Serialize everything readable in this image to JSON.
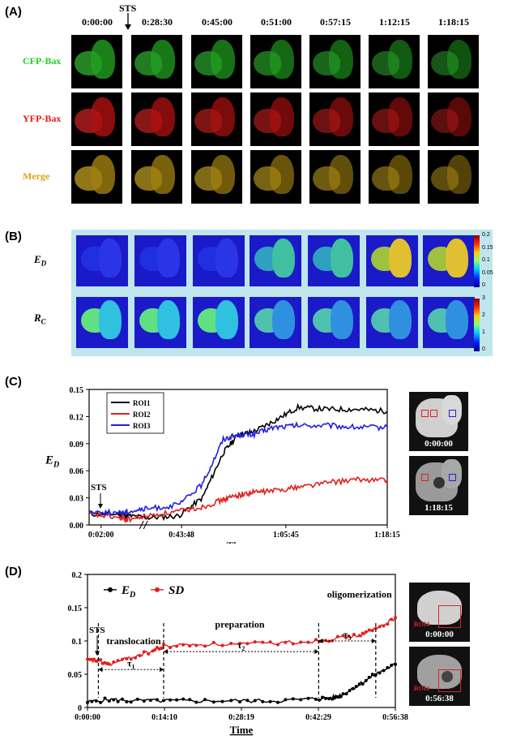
{
  "panelA": {
    "label": "(A)",
    "sts": "STS",
    "timepoints": [
      "0:00:00",
      "0:28:30",
      "0:45:00",
      "0:51:00",
      "0:57:15",
      "1:12:15",
      "1:18:15"
    ],
    "rows": [
      {
        "label": "CFP-Bax",
        "color": "#1fd21f"
      },
      {
        "label": "YFP-Bax",
        "color": "#e11a1a"
      },
      {
        "label": "Merge",
        "color": "#e0a21a"
      }
    ]
  },
  "panelB": {
    "label": "(B)",
    "row1": {
      "label": "E",
      "sub": "D"
    },
    "row2": {
      "label": "R",
      "sub": "C"
    },
    "cbar1": [
      "0.2",
      "0.15",
      "0.1",
      "0.05",
      "0"
    ],
    "cbar2": [
      "3",
      "2",
      "1",
      "0"
    ]
  },
  "panelC": {
    "label": "(C)",
    "ylabel_main": "E",
    "ylabel_sub": "D",
    "xlabel": "Time",
    "sts": "STS",
    "yticks": [
      "0.00",
      "0.03",
      "0.06",
      "0.09",
      "0.12",
      "0.15"
    ],
    "xticks": [
      "0:02:00",
      "0:43:48",
      "1:05:45",
      "1:18:15"
    ],
    "legend": [
      "ROI1",
      "ROI2",
      "ROI3"
    ],
    "inset_times": [
      "0:00:00",
      "1:18:15"
    ]
  },
  "panelD": {
    "label": "(D)",
    "xlabel": "Time",
    "sts": "STS",
    "yticks": [
      "0",
      "0.05",
      "0.1",
      "0.15",
      "0.2"
    ],
    "xticks": [
      "0:00:00",
      "0:14:10",
      "0:28:19",
      "0:42:29",
      "0:56:38"
    ],
    "legend_ed_main": "E",
    "legend_ed_sub": "D",
    "legend_sd": "SD",
    "phases": [
      "translocation",
      "preparation",
      "oligomerization"
    ],
    "taus": [
      {
        "t": "τ",
        "s": "1"
      },
      {
        "t": "τ",
        "s": "2"
      },
      {
        "t": "τ",
        "s": "3"
      }
    ],
    "roi_label": "ROI4",
    "inset_times": [
      "0:00:00",
      "0:56:38"
    ]
  },
  "chart_data": [
    {
      "type": "line",
      "ylabel": "E_D",
      "xlabel": "Time",
      "x_ticks": [
        "0:02:00",
        "0:43:48",
        "1:05:45",
        "1:18:15"
      ],
      "ylim": [
        0,
        0.15
      ],
      "series": [
        {
          "name": "ROI1",
          "color": "#000000",
          "x": [
            0,
            0.1,
            0.13,
            0.2,
            0.3,
            0.38,
            0.45,
            0.5,
            0.55,
            0.62,
            0.7,
            0.8,
            0.9,
            1.0
          ],
          "y": [
            0.012,
            0.012,
            0.01,
            0.008,
            0.01,
            0.03,
            0.08,
            0.1,
            0.103,
            0.115,
            0.13,
            0.128,
            0.128,
            0.126
          ]
        },
        {
          "name": "ROI2",
          "color": "#e02020",
          "x": [
            0,
            0.1,
            0.13,
            0.2,
            0.3,
            0.38,
            0.45,
            0.5,
            0.55,
            0.62,
            0.7,
            0.8,
            0.9,
            1.0
          ],
          "y": [
            0.012,
            0.008,
            0.006,
            0.01,
            0.015,
            0.02,
            0.028,
            0.033,
            0.036,
            0.038,
            0.042,
            0.047,
            0.05,
            0.05
          ]
        },
        {
          "name": "ROI3",
          "color": "#2020e0",
          "x": [
            0,
            0.1,
            0.13,
            0.2,
            0.3,
            0.38,
            0.45,
            0.5,
            0.55,
            0.62,
            0.7,
            0.8,
            0.9,
            1.0
          ],
          "y": [
            0.015,
            0.013,
            0.015,
            0.018,
            0.022,
            0.045,
            0.095,
            0.1,
            0.1,
            0.108,
            0.11,
            0.11,
            0.108,
            0.108
          ]
        }
      ]
    },
    {
      "type": "line",
      "xlabel": "Time",
      "x_ticks": [
        "0:00:00",
        "0:14:10",
        "0:28:19",
        "0:42:29",
        "0:56:38"
      ],
      "ylim": [
        0,
        0.2
      ],
      "series": [
        {
          "name": "E_D",
          "color": "#000000",
          "x": [
            0,
            4,
            8,
            14,
            20,
            28,
            35,
            42,
            45,
            47,
            50,
            53,
            56.6
          ],
          "y": [
            0.008,
            0.012,
            0.01,
            0.01,
            0.01,
            0.01,
            0.01,
            0.013,
            0.015,
            0.02,
            0.035,
            0.05,
            0.065
          ]
        },
        {
          "name": "SD",
          "color": "#e02020",
          "x": [
            0,
            2,
            4,
            8,
            12,
            14,
            20,
            28,
            35,
            42,
            45,
            50,
            53,
            56.6
          ],
          "y": [
            0.07,
            0.07,
            0.065,
            0.075,
            0.085,
            0.092,
            0.095,
            0.095,
            0.097,
            0.1,
            0.103,
            0.108,
            0.118,
            0.135
          ]
        }
      ]
    }
  ]
}
